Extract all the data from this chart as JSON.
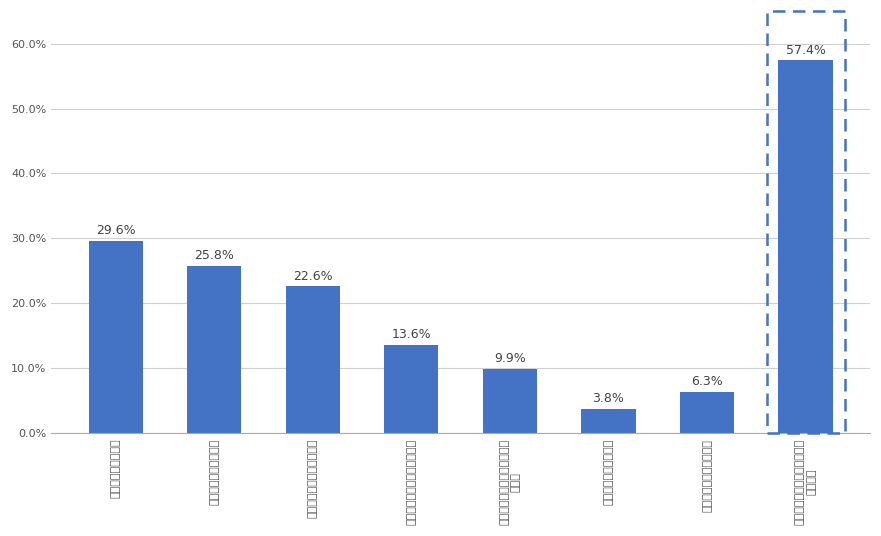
{
  "values": [
    29.6,
    25.8,
    22.6,
    13.6,
    9.9,
    3.8,
    6.3,
    57.4
  ],
  "bar_color": "#4472C4",
  "ylim_max": 65,
  "yticks": [
    0.0,
    10.0,
    20.0,
    30.0,
    40.0,
    50.0,
    60.0
  ],
  "ytick_labels": [
    "0.0%",
    "10.0%",
    "20.0%",
    "30.0%",
    "40.0%",
    "50.0%",
    "60.0%"
  ],
  "value_labels": [
    "29.6%",
    "25.8%",
    "22.6%",
    "13.6%",
    "9.9%",
    "3.8%",
    "6.3%",
    "57.4%"
  ],
  "x_labels": [
    "大体の場所が分かる",
    "江戸時代からの薬の町",
    "今も医薬品関連企業が集積",
    "薬の神様・少彦名神社がある",
    "少彦名神社で毎年「神農祭」\nが開催",
    "国産カレー粉発祥の地",
    "薬のミュージアムが集積",
    "道修町について知っているこ\nとはない"
  ],
  "background_color": "#ffffff",
  "grid_color": "#d0d0d0",
  "dashed_color": "#4472C4",
  "label_fontsize": 9,
  "tick_fontsize": 8,
  "bar_width": 0.55
}
